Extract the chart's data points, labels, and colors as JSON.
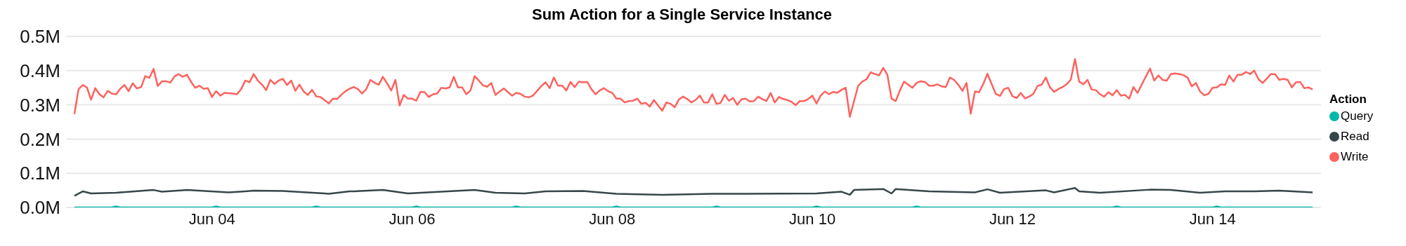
{
  "chart_data": {
    "type": "line",
    "title": "Sum Action for a Single Service Instance",
    "legend_title": "Action",
    "legend": "right",
    "grid": "y",
    "marker": "none",
    "line_style": "solid",
    "xlim": [
      "--06-02T13:00",
      "--06-15T02:00"
    ],
    "xticks": [
      {
        "value": "--06-04",
        "label": "Jun 04"
      },
      {
        "value": "--06-06",
        "label": "Jun 06"
      },
      {
        "value": "--06-08",
        "label": "Jun 08"
      },
      {
        "value": "--06-10",
        "label": "Jun 10"
      },
      {
        "value": "--06-12",
        "label": "Jun 12"
      },
      {
        "value": "--06-14",
        "label": "Jun 14"
      }
    ],
    "ylim": [
      0,
      500000
    ],
    "yticks": [
      {
        "value": 0,
        "label": "0.0M"
      },
      {
        "value": 100000,
        "label": "0.1M"
      },
      {
        "value": 200000,
        "label": "0.2M"
      },
      {
        "value": 300000,
        "label": "0.3M"
      },
      {
        "value": 400000,
        "label": "0.4M"
      },
      {
        "value": 500000,
        "label": "0.5M"
      }
    ],
    "series": [
      {
        "name": "Query",
        "color": "#01b8aa",
        "x": [
          "--06-02T15:00",
          "--06-03T00:00",
          "--06-03T01:00",
          "--06-03T02:00",
          "--06-04T00:00",
          "--06-04T01:00",
          "--06-04T02:00",
          "--06-05T00:00",
          "--06-05T01:00",
          "--06-05T02:00",
          "--06-06T00:00",
          "--06-06T01:00",
          "--06-06T02:00",
          "--06-07T00:00",
          "--06-07T01:00",
          "--06-07T02:00",
          "--06-08T00:00",
          "--06-08T01:00",
          "--06-08T02:00",
          "--06-09T00:00",
          "--06-09T01:00",
          "--06-09T02:00",
          "--06-10T00:00",
          "--06-10T01:00",
          "--06-10T02:00",
          "--06-11T00:00",
          "--06-11T01:00",
          "--06-11T02:00",
          "--06-13T00:00",
          "--06-13T01:00",
          "--06-13T02:00",
          "--06-14T00:00",
          "--06-14T01:00",
          "--06-14T02:00",
          "--06-15T00:00"
        ],
        "values": [
          0,
          0,
          3000,
          0,
          0,
          3000,
          0,
          0,
          3000,
          0,
          0,
          3000,
          0,
          0,
          3000,
          0,
          0,
          3000,
          0,
          0,
          3000,
          0,
          0,
          3000,
          0,
          0,
          3000,
          0,
          0,
          3000,
          0,
          0,
          3000,
          0,
          0
        ]
      },
      {
        "name": "Read",
        "color": "#374649",
        "x": [
          "--06-02T15:00",
          "--06-02T17:00",
          "--06-02T19:00",
          "--06-03T01:00",
          "--06-03T10:00",
          "--06-03T12:00",
          "--06-03T18:00",
          "--06-04T04:00",
          "--06-04T08:00",
          "--06-04T10:00",
          "--06-04T17:00",
          "--06-05T03:00",
          "--06-05T04:00",
          "--06-05T09:00",
          "--06-05T10:00",
          "--06-05T17:00",
          "--06-05T23:00",
          "--06-06T15:00",
          "--06-06T20:00",
          "--06-07T03:00",
          "--06-07T08:00",
          "--06-07T17:00",
          "--06-08T01:00",
          "--06-08T12:00",
          "--06-09T00:00",
          "--06-09T08:00",
          "--06-10T01:00",
          "--06-10T07:00",
          "--06-10T09:00",
          "--06-10T10:00",
          "--06-10T17:00",
          "--06-10T19:00",
          "--06-10T20:00",
          "--06-11T04:00",
          "--06-11T15:00",
          "--06-11T18:00",
          "--06-11T21:00",
          "--06-12T08:00",
          "--06-12T10:00",
          "--06-12T15:00",
          "--06-12T16:00",
          "--06-12T21:00",
          "--06-13T09:00",
          "--06-13T14:00",
          "--06-13T21:00",
          "--06-14T03:00",
          "--06-14T10:00",
          "--06-14T16:00",
          "--06-15T00:00"
        ],
        "values": [
          34000,
          47000,
          41000,
          43000,
          51000,
          46000,
          51000,
          44000,
          47000,
          49000,
          48000,
          41000,
          40000,
          47000,
          47000,
          51000,
          41000,
          51000,
          43000,
          41000,
          47000,
          48000,
          40000,
          37000,
          40000,
          40000,
          41000,
          46000,
          37000,
          51000,
          54000,
          41000,
          54000,
          47000,
          44000,
          53000,
          43000,
          50000,
          44000,
          57000,
          47000,
          43000,
          52000,
          51000,
          43000,
          47000,
          47000,
          49000,
          44000
        ]
      },
      {
        "name": "Write",
        "color": "#fd625e",
        "x": [
          "--06-02T15:00",
          "--06-02T16:00",
          "--06-02T17:00",
          "--06-02T18:00",
          "--06-02T19:00",
          "--06-02T20:00",
          "--06-02T21:00",
          "--06-02T22:00",
          "--06-02T23:00",
          "--06-03T00:00",
          "--06-03T01:00",
          "--06-03T02:00",
          "--06-03T03:00",
          "--06-03T04:00",
          "--06-03T05:00",
          "--06-03T06:00",
          "--06-03T07:00",
          "--06-03T08:00",
          "--06-03T09:00",
          "--06-03T10:00",
          "--06-03T11:00",
          "--06-03T12:00",
          "--06-03T13:00",
          "--06-03T14:00",
          "--06-03T15:00",
          "--06-03T16:00",
          "--06-03T17:00",
          "--06-03T18:00",
          "--06-03T19:00",
          "--06-03T20:00",
          "--06-03T21:00",
          "--06-03T22:00",
          "--06-03T23:00",
          "--06-04T00:00",
          "--06-04T01:00",
          "--06-04T02:00",
          "--06-04T03:00",
          "--06-04T04:00",
          "--06-04T05:00",
          "--06-04T06:00",
          "--06-04T07:00",
          "--06-04T08:00",
          "--06-04T09:00",
          "--06-04T10:00",
          "--06-04T11:00",
          "--06-04T12:00",
          "--06-04T13:00",
          "--06-04T14:00",
          "--06-04T15:00",
          "--06-04T16:00",
          "--06-04T17:00",
          "--06-04T18:00",
          "--06-04T19:00",
          "--06-04T20:00",
          "--06-04T21:00",
          "--06-04T22:00",
          "--06-04T23:00",
          "--06-05T00:00",
          "--06-05T01:00",
          "--06-05T02:00",
          "--06-05T03:00",
          "--06-05T04:00",
          "--06-05T05:00",
          "--06-05T06:00",
          "--06-05T07:00",
          "--06-05T08:00",
          "--06-05T09:00",
          "--06-05T10:00",
          "--06-05T11:00",
          "--06-05T12:00",
          "--06-05T13:00",
          "--06-05T14:00",
          "--06-05T15:00",
          "--06-05T16:00",
          "--06-05T17:00",
          "--06-05T18:00",
          "--06-05T19:00",
          "--06-05T20:00",
          "--06-05T21:00",
          "--06-05T22:00",
          "--06-05T23:00",
          "--06-06T00:00",
          "--06-06T01:00",
          "--06-06T02:00",
          "--06-06T03:00",
          "--06-06T04:00",
          "--06-06T05:00",
          "--06-06T06:00",
          "--06-06T07:00",
          "--06-06T08:00",
          "--06-06T09:00",
          "--06-06T10:00",
          "--06-06T11:00",
          "--06-06T12:00",
          "--06-06T13:00",
          "--06-06T14:00",
          "--06-06T15:00",
          "--06-06T16:00",
          "--06-06T17:00",
          "--06-06T18:00",
          "--06-06T19:00",
          "--06-06T20:00",
          "--06-06T21:00",
          "--06-06T22:00",
          "--06-06T23:00",
          "--06-07T00:00",
          "--06-07T01:00",
          "--06-07T02:00",
          "--06-07T03:00",
          "--06-07T04:00",
          "--06-07T05:00",
          "--06-07T06:00",
          "--06-07T07:00",
          "--06-07T08:00",
          "--06-07T09:00",
          "--06-07T10:00",
          "--06-07T11:00",
          "--06-07T12:00",
          "--06-07T13:00",
          "--06-07T14:00",
          "--06-07T15:00",
          "--06-07T16:00",
          "--06-07T17:00",
          "--06-07T18:00",
          "--06-07T19:00",
          "--06-07T20:00",
          "--06-07T21:00",
          "--06-07T22:00",
          "--06-07T23:00",
          "--06-08T00:00",
          "--06-08T01:00",
          "--06-08T02:00",
          "--06-08T03:00",
          "--06-08T04:00",
          "--06-08T05:00",
          "--06-08T06:00",
          "--06-08T07:00",
          "--06-08T08:00",
          "--06-08T09:00",
          "--06-08T10:00",
          "--06-08T11:00",
          "--06-08T12:00",
          "--06-08T13:00",
          "--06-08T14:00",
          "--06-08T15:00",
          "--06-08T16:00",
          "--06-08T17:00",
          "--06-08T18:00",
          "--06-08T19:00",
          "--06-08T20:00",
          "--06-08T21:00",
          "--06-08T22:00",
          "--06-08T23:00",
          "--06-09T00:00",
          "--06-09T01:00",
          "--06-09T02:00",
          "--06-09T03:00",
          "--06-09T04:00",
          "--06-09T05:00",
          "--06-09T06:00",
          "--06-09T07:00",
          "--06-09T08:00",
          "--06-09T09:00",
          "--06-09T10:00",
          "--06-09T11:00",
          "--06-09T12:00",
          "--06-09T13:00",
          "--06-09T14:00",
          "--06-09T15:00",
          "--06-09T16:00",
          "--06-09T17:00",
          "--06-09T18:00",
          "--06-09T19:00",
          "--06-09T20:00",
          "--06-09T21:00",
          "--06-09T22:00",
          "--06-09T23:00",
          "--06-10T00:00",
          "--06-10T01:00",
          "--06-10T02:00",
          "--06-10T03:00",
          "--06-10T04:00",
          "--06-10T05:00",
          "--06-10T06:00",
          "--06-10T07:00",
          "--06-10T08:00",
          "--06-10T09:00",
          "--06-10T10:00",
          "--06-10T11:00",
          "--06-10T12:00",
          "--06-10T13:00",
          "--06-10T14:00",
          "--06-10T15:00",
          "--06-10T16:00",
          "--06-10T17:00",
          "--06-10T18:00",
          "--06-10T19:00",
          "--06-10T20:00",
          "--06-10T21:00",
          "--06-10T22:00",
          "--06-10T23:00",
          "--06-11T00:00",
          "--06-11T01:00",
          "--06-11T02:00",
          "--06-11T03:00",
          "--06-11T04:00",
          "--06-11T05:00",
          "--06-11T06:00",
          "--06-11T07:00",
          "--06-11T08:00",
          "--06-11T09:00",
          "--06-11T10:00",
          "--06-11T11:00",
          "--06-11T12:00",
          "--06-11T13:00",
          "--06-11T14:00",
          "--06-11T15:00",
          "--06-11T16:00",
          "--06-11T17:00",
          "--06-11T18:00",
          "--06-11T19:00",
          "--06-11T20:00",
          "--06-11T21:00",
          "--06-11T22:00",
          "--06-11T23:00",
          "--06-12T00:00",
          "--06-12T01:00",
          "--06-12T02:00",
          "--06-12T03:00",
          "--06-12T04:00",
          "--06-12T05:00",
          "--06-12T06:00",
          "--06-12T07:00",
          "--06-12T08:00",
          "--06-12T09:00",
          "--06-12T10:00",
          "--06-12T11:00",
          "--06-12T12:00",
          "--06-12T13:00",
          "--06-12T14:00",
          "--06-12T15:00",
          "--06-12T16:00",
          "--06-12T17:00",
          "--06-12T18:00",
          "--06-12T19:00",
          "--06-12T20:00",
          "--06-12T21:00",
          "--06-12T22:00",
          "--06-12T23:00",
          "--06-13T00:00",
          "--06-13T01:00",
          "--06-13T02:00",
          "--06-13T03:00",
          "--06-13T04:00",
          "--06-13T05:00",
          "--06-13T06:00",
          "--06-13T07:00",
          "--06-13T08:00",
          "--06-13T09:00",
          "--06-13T10:00",
          "--06-13T11:00",
          "--06-13T12:00",
          "--06-13T13:00",
          "--06-13T14:00",
          "--06-13T15:00",
          "--06-13T16:00",
          "--06-13T17:00",
          "--06-13T18:00",
          "--06-13T19:00",
          "--06-13T20:00",
          "--06-13T21:00",
          "--06-13T22:00",
          "--06-13T23:00",
          "--06-14T00:00",
          "--06-14T01:00",
          "--06-14T02:00",
          "--06-14T03:00",
          "--06-14T04:00",
          "--06-14T05:00",
          "--06-14T06:00",
          "--06-14T07:00",
          "--06-14T08:00",
          "--06-14T09:00",
          "--06-14T10:00",
          "--06-14T11:00",
          "--06-14T12:00",
          "--06-14T13:00",
          "--06-14T14:00",
          "--06-14T15:00",
          "--06-14T16:00",
          "--06-14T17:00",
          "--06-14T18:00",
          "--06-14T19:00",
          "--06-14T20:00",
          "--06-14T21:00",
          "--06-14T22:00",
          "--06-14T23:00",
          "--06-15T00:00"
        ],
        "values": [
          273000,
          346000,
          358000,
          351000,
          315000,
          349000,
          331000,
          322000,
          341000,
          333000,
          331000,
          347000,
          358000,
          340000,
          363000,
          348000,
          352000,
          384000,
          379000,
          405000,
          355000,
          369000,
          369000,
          365000,
          383000,
          390000,
          382000,
          388000,
          367000,
          350000,
          356000,
          347000,
          349000,
          323000,
          340000,
          327000,
          335000,
          334000,
          333000,
          331000,
          346000,
          371000,
          366000,
          390000,
          371000,
          359000,
          343000,
          373000,
          361000,
          371000,
          376000,
          358000,
          371000,
          341000,
          359000,
          339000,
          329000,
          344000,
          325000,
          323000,
          314000,
          304000,
          318000,
          317000,
          329000,
          340000,
          347000,
          352000,
          346000,
          333000,
          346000,
          373000,
          364000,
          359000,
          382000,
          363000,
          342000,
          373000,
          298000,
          329000,
          318000,
          318000,
          312000,
          338000,
          337000,
          323000,
          331000,
          333000,
          350000,
          348000,
          351000,
          382000,
          351000,
          351000,
          331000,
          342000,
          384000,
          371000,
          357000,
          353000,
          364000,
          329000,
          339000,
          348000,
          337000,
          327000,
          335000,
          332000,
          324000,
          322000,
          327000,
          341000,
          355000,
          366000,
          349000,
          380000,
          356000,
          356000,
          342000,
          367000,
          352000,
          368000,
          366000,
          367000,
          346000,
          331000,
          342000,
          349000,
          340000,
          335000,
          318000,
          318000,
          307000,
          311000,
          312000,
          318000,
          303000,
          306000,
          295000,
          314000,
          298000,
          283000,
          307000,
          303000,
          293000,
          316000,
          324000,
          317000,
          307000,
          314000,
          327000,
          307000,
          307000,
          331000,
          303000,
          306000,
          329000,
          312000,
          320000,
          300000,
          316000,
          318000,
          310000,
          311000,
          324000,
          317000,
          311000,
          335000,
          307000,
          323000,
          317000,
          314000,
          309000,
          299000,
          311000,
          311000,
          317000,
          327000,
          304000,
          327000,
          339000,
          331000,
          338000,
          335000,
          344000,
          350000,
          265000,
          311000,
          356000,
          368000,
          375000,
          395000,
          390000,
          386000,
          408000,
          388000,
          318000,
          311000,
          342000,
          368000,
          359000,
          350000,
          364000,
          369000,
          367000,
          356000,
          356000,
          360000,
          354000,
          352000,
          380000,
          373000,
          359000,
          341000,
          364000,
          274000,
          339000,
          337000,
          361000,
          391000,
          361000,
          332000,
          326000,
          346000,
          350000,
          325000,
          320000,
          335000,
          319000,
          324000,
          332000,
          355000,
          359000,
          380000,
          351000,
          338000,
          346000,
          352000,
          360000,
          374000,
          434000,
          368000,
          360000,
          373000,
          345000,
          343000,
          331000,
          324000,
          337000,
          328000,
          343000,
          327000,
          329000,
          318000,
          352000,
          335000,
          359000,
          383000,
          406000,
          371000,
          386000,
          373000,
          371000,
          390000,
          392000,
          390000,
          387000,
          380000,
          354000,
          364000,
          339000,
          328000,
          332000,
          350000,
          351000,
          360000,
          358000,
          386000,
          368000,
          388000,
          388000,
          396000,
          390000,
          400000,
          375000,
          364000,
          377000,
          390000,
          390000,
          373000,
          376000,
          373000,
          351000,
          366000,
          367000,
          349000,
          351000,
          345000
        ]
      }
    ]
  }
}
